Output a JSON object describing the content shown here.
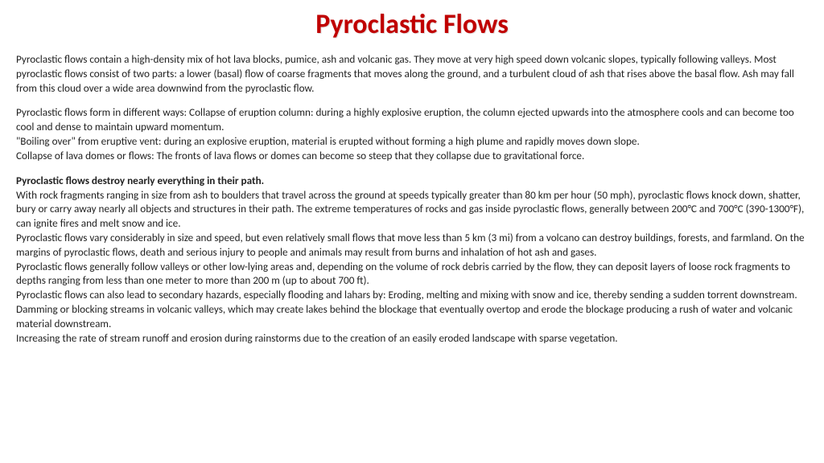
{
  "title": "Pyroclastic Flows",
  "colors": {
    "title": "#C00000",
    "text": "#222222",
    "background": "#ffffff"
  },
  "typography": {
    "title_fontsize_pt": 26,
    "body_fontsize_pt": 10,
    "font_family": "Calibri"
  },
  "paragraphs": {
    "p1": "Pyroclastic flows contain a high-density mix of hot lava blocks, pumice, ash and volcanic gas. They move at very high speed down volcanic slopes, typically following valleys. Most pyroclastic flows consist of two parts: a lower (basal) flow of coarse fragments that moves along the ground, and a turbulent cloud of ash that rises above the basal flow. Ash may fall from this cloud over a wide area downwind from the pyroclastic flow.",
    "p2_l1": "Pyroclastic flows form in different ways: Collapse of eruption column: during a highly explosive eruption, the column ejected upwards into the atmosphere cools and can become too cool and dense to maintain upward momentum.",
    "p2_l2": "\"Boiling over\" from eruptive vent: during an explosive eruption, material is erupted without forming a high plume and rapidly moves down slope.",
    "p2_l3": "Collapse of lava domes or flows: The fronts of lava flows or domes can become so steep that they collapse due to gravitational force.",
    "p3_bold": "Pyroclastic flows destroy nearly everything in their path.",
    "p3_l1": "With rock fragments ranging in size from ash to boulders that travel across the ground at speeds typically greater than 80 km per hour (50 mph), pyroclastic flows knock down, shatter, bury or carry away nearly all objects and structures in their path. The extreme temperatures of rocks and gas inside pyroclastic flows, generally between 200°C and 700°C (390-1300°F), can ignite fires and melt snow and ice.",
    "p3_l2": "Pyroclastic flows vary considerably in size and speed, but even relatively small flows that move less than 5 km (3 mi) from a volcano can destroy buildings, forests, and farmland. On the margins of pyroclastic flows, death and serious injury to people and animals may result from burns and inhalation of hot ash and gases.",
    "p3_l3": "Pyroclastic flows generally follow valleys or other low-lying areas and, depending on the volume of rock debris carried by the flow, they can deposit layers of loose rock fragments to depths ranging from less than one meter to more than 200 m (up to about 700 ft).",
    "p3_l4": "Pyroclastic flows can also lead to secondary hazards, especially flooding and lahars by: Eroding, melting and mixing with snow and ice, thereby sending a sudden torrent downstream.",
    "p3_l5": "Damming or blocking streams in volcanic valleys, which may create lakes behind the blockage that eventually overtop and erode the blockage producing a rush of water and volcanic material downstream.",
    "p3_l6": "Increasing the rate of stream runoff and erosion during rainstorms due to the creation of an easily eroded landscape with sparse vegetation."
  }
}
